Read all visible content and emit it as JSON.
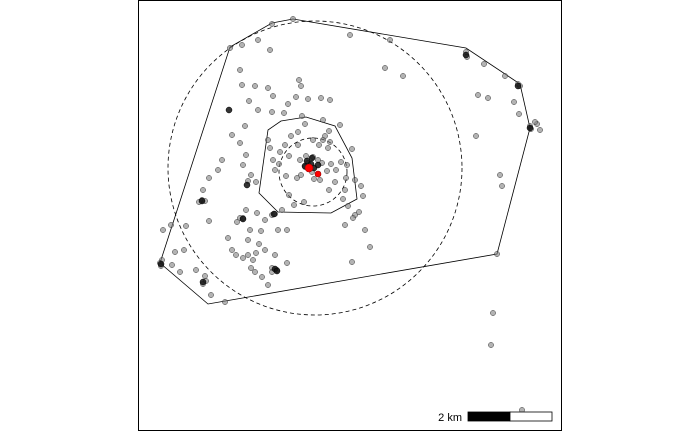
{
  "map": {
    "colors": {
      "point_fill": "#808080",
      "point_stroke": "#333333",
      "centroid": "#ff0000",
      "hull_stroke": "#000000",
      "circle_stroke": "#000000",
      "scalebar_fill": "#000000",
      "scalebar_empty": "#ffffff"
    },
    "scalebar": {
      "label": "2 km"
    }
  }
}
